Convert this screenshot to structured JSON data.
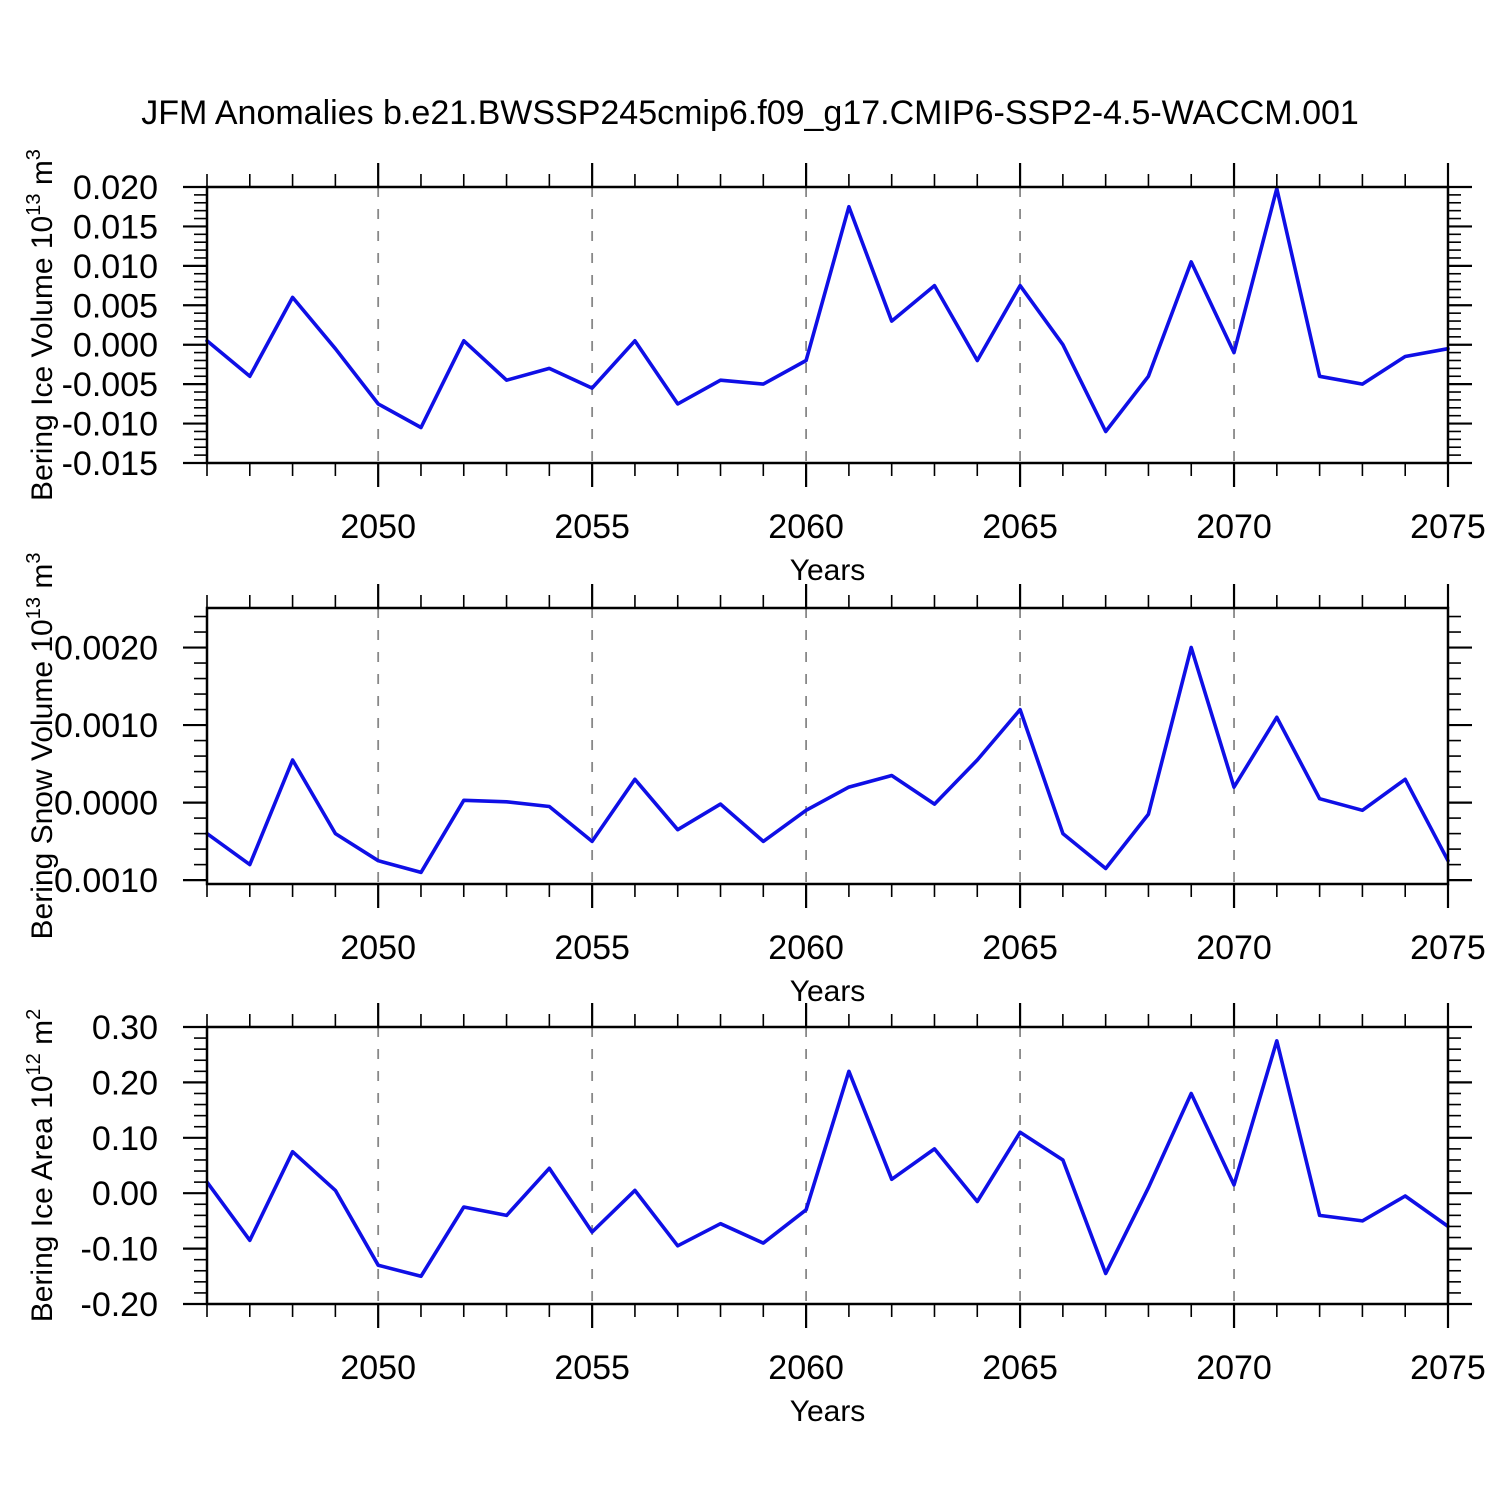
{
  "title": "JFM Anomalies b.e21.BWSSP245cmip6.f09_g17.CMIP6-SSP2-4.5-WACCM.001",
  "chart_data": {
    "type": "line",
    "title": "JFM Anomalies b.e21.BWSSP245cmip6.f09_g17.CMIP6-SSP2-4.5-WACCM.001",
    "x_label": "Years",
    "legend": "none",
    "grid": "vertical-dashed",
    "line_color": "#0f0fe6",
    "grid_color": "#888888",
    "frame_color": "#000000",
    "years": [
      2046,
      2047,
      2048,
      2049,
      2050,
      2051,
      2052,
      2053,
      2054,
      2055,
      2056,
      2057,
      2058,
      2059,
      2060,
      2061,
      2062,
      2063,
      2064,
      2065,
      2066,
      2067,
      2068,
      2069,
      2070,
      2071,
      2072,
      2073,
      2074,
      2075
    ],
    "x_range": [
      2046,
      2075
    ],
    "x_tick_years": [
      2050,
      2055,
      2060,
      2065,
      2070,
      2075
    ],
    "x_tick_labels": [
      "2050",
      "2055",
      "2060",
      "2065",
      "2070",
      "2075"
    ],
    "grid_years": [
      2050,
      2055,
      2060,
      2065,
      2070
    ],
    "panels": [
      {
        "name": "bering-ice-volume",
        "ylabel": {
          "base": "Bering Ice Volume 10",
          "sup": "13",
          "unit": " m",
          "unit_sup": "3"
        },
        "ytick_labels": [
          "0.020",
          "0.015",
          "0.010",
          "0.005",
          "0.000",
          "-0.005",
          "-0.010",
          "-0.015"
        ],
        "ytick_values": [
          0.02,
          0.015,
          0.01,
          0.005,
          0.0,
          -0.005,
          -0.01,
          -0.015
        ],
        "y_minor_step": 0.001,
        "ylim": [
          -0.015,
          0.02
        ],
        "values": [
          0.0005,
          -0.004,
          0.006,
          -0.0005,
          -0.0075,
          -0.0105,
          0.0005,
          -0.0045,
          -0.003,
          -0.0055,
          0.0005,
          -0.0075,
          -0.0045,
          -0.005,
          -0.002,
          0.0175,
          0.003,
          0.0075,
          -0.002,
          0.0075,
          0.0,
          -0.011,
          -0.004,
          0.0105,
          -0.001,
          0.0198,
          -0.004,
          -0.005,
          -0.0015,
          -0.0005
        ]
      },
      {
        "name": "bering-snow-volume",
        "ylabel": {
          "base": "Bering Snow Volume 10",
          "sup": "13",
          "unit": " m",
          "unit_sup": "3"
        },
        "ytick_labels": [
          "0.0020",
          "0.0010",
          "0.0000",
          "-0.0010"
        ],
        "ytick_values": [
          0.002,
          0.001,
          0.0,
          -0.001
        ],
        "y_minor_step": 0.0002,
        "ylim": [
          -0.00105,
          0.00251
        ],
        "values": [
          -0.0004,
          -0.0008,
          0.00055,
          -0.0004,
          -0.00075,
          -0.0009,
          3e-05,
          1e-05,
          -5e-05,
          -0.0005,
          0.0003,
          -0.00035,
          -2e-05,
          -0.0005,
          -0.0001,
          0.0002,
          0.00035,
          -2e-05,
          0.00055,
          0.0012,
          -0.0004,
          -0.00085,
          -0.00015,
          0.002,
          0.0002,
          0.0011,
          5e-05,
          -0.0001,
          0.0003,
          -0.00075
        ]
      },
      {
        "name": "bering-ice-area",
        "ylabel": {
          "base": "Bering Ice Area 10",
          "sup": "12",
          "unit": " m",
          "unit_sup": "2"
        },
        "ytick_labels": [
          "0.30",
          "0.20",
          "0.10",
          "0.00",
          "-0.10",
          "-0.20"
        ],
        "ytick_values": [
          0.3,
          0.2,
          0.1,
          0.0,
          -0.1,
          -0.2
        ],
        "y_minor_step": 0.02,
        "ylim": [
          -0.2,
          0.3
        ],
        "values": [
          0.02,
          -0.085,
          0.075,
          0.005,
          -0.13,
          -0.15,
          -0.025,
          -0.04,
          0.045,
          -0.07,
          0.005,
          -0.095,
          -0.055,
          -0.09,
          -0.03,
          0.22,
          0.025,
          0.08,
          -0.015,
          0.11,
          0.06,
          -0.145,
          0.01,
          0.18,
          0.015,
          0.275,
          -0.04,
          -0.05,
          -0.005,
          -0.06
        ]
      }
    ]
  }
}
